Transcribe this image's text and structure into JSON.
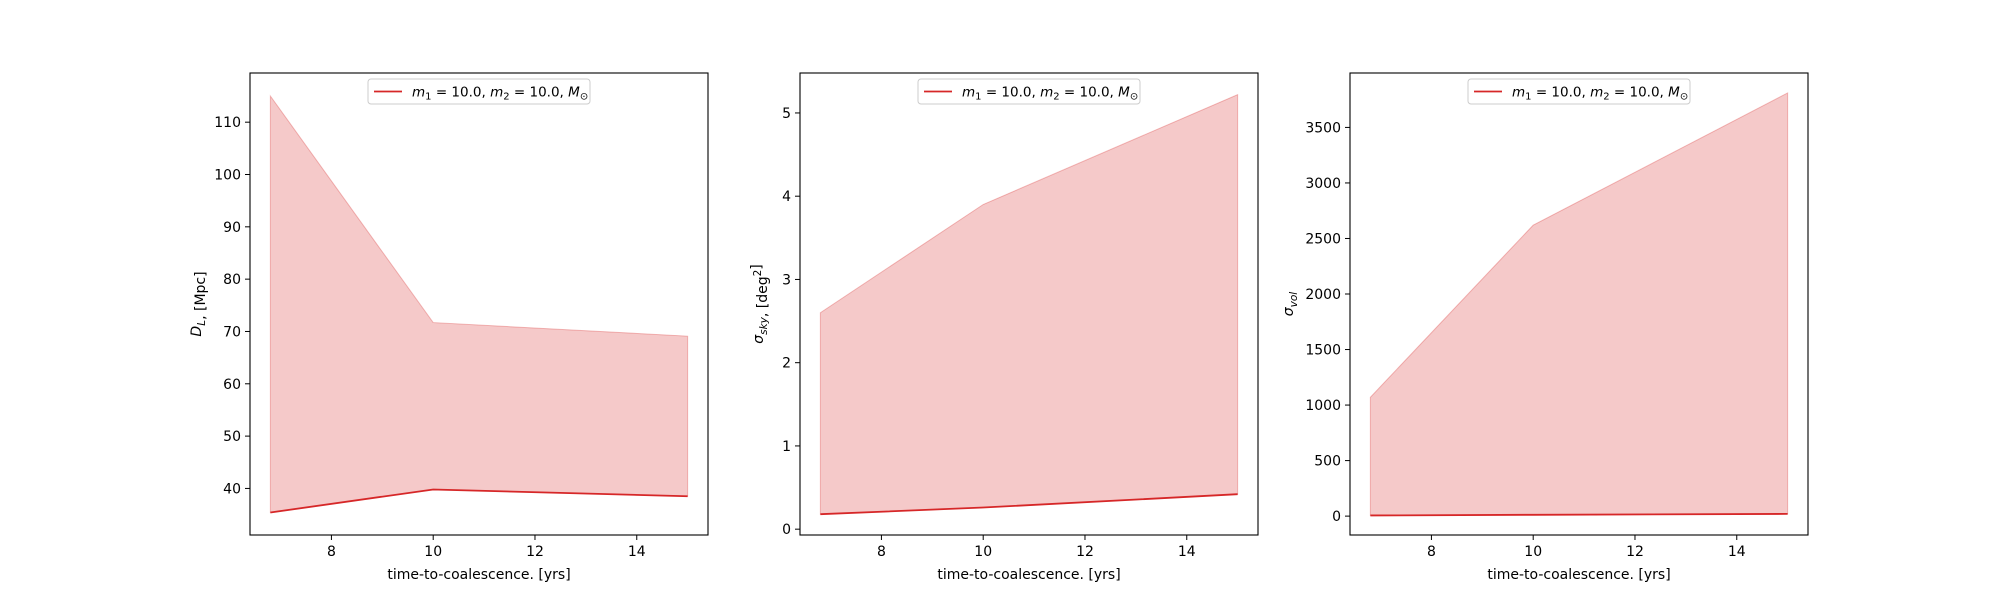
{
  "colors": {
    "line": "#d62728",
    "fill": "#d62728",
    "fill_opacity": 0.25
  },
  "chart_data": [
    {
      "type": "area",
      "xlabel": "time-to-coalescence. [yrs]",
      "ylabel_parts": [
        [
          "D",
          "italic"
        ],
        [
          "L",
          "sub-italic"
        ],
        [
          ", [Mpc]",
          "normal"
        ]
      ],
      "legend": {
        "placement": "top-center",
        "label": "m1 = 10.0, m2 = 10.0, M⊙"
      },
      "xlim": [
        6.4,
        15.4
      ],
      "ylim": [
        31.1,
        119.4
      ],
      "xticks": [
        8,
        10,
        12,
        14
      ],
      "yticks": [
        40,
        50,
        60,
        70,
        80,
        90,
        100,
        110
      ],
      "x": [
        6.8,
        10.0,
        15.0
      ],
      "series": [
        {
          "line": [
            35.4,
            39.8,
            38.5
          ],
          "upper": [
            115.0,
            71.7,
            69.1
          ]
        }
      ]
    },
    {
      "type": "area",
      "xlabel": "time-to-coalescence. [yrs]",
      "ylabel_parts": [
        [
          "σ",
          "italic"
        ],
        [
          "sky",
          "sub-italic"
        ],
        [
          ", [deg",
          "normal"
        ],
        [
          "2",
          "sup"
        ],
        [
          "]",
          "normal"
        ]
      ],
      "legend": {
        "placement": "top-center",
        "label": "m1 = 10.0, m2 = 10.0, M⊙"
      },
      "xlim": [
        6.4,
        15.4
      ],
      "ylim": [
        -0.07,
        5.48
      ],
      "xticks": [
        8,
        10,
        12,
        14
      ],
      "yticks": [
        0,
        1,
        2,
        3,
        4,
        5
      ],
      "x": [
        6.8,
        10.0,
        15.0
      ],
      "series": [
        {
          "line": [
            0.18,
            0.26,
            0.42
          ],
          "upper": [
            2.6,
            3.9,
            5.22
          ]
        }
      ]
    },
    {
      "type": "area",
      "xlabel": "time-to-coalescence. [yrs]",
      "ylabel_parts": [
        [
          "σ",
          "italic"
        ],
        [
          "vol",
          "sub-italic"
        ]
      ],
      "legend": {
        "placement": "top-center",
        "label": "m1 = 10.0, m2 = 10.0, M⊙"
      },
      "xlim": [
        6.4,
        15.4
      ],
      "ylim": [
        -170,
        3990
      ],
      "xticks": [
        8,
        10,
        12,
        14
      ],
      "yticks": [
        0,
        500,
        1000,
        1500,
        2000,
        2500,
        3000,
        3500
      ],
      "x": [
        6.8,
        10.0,
        15.0
      ],
      "series": [
        {
          "line": [
            6,
            12,
            20
          ],
          "upper": [
            1070,
            2620,
            3810
          ]
        }
      ]
    }
  ]
}
